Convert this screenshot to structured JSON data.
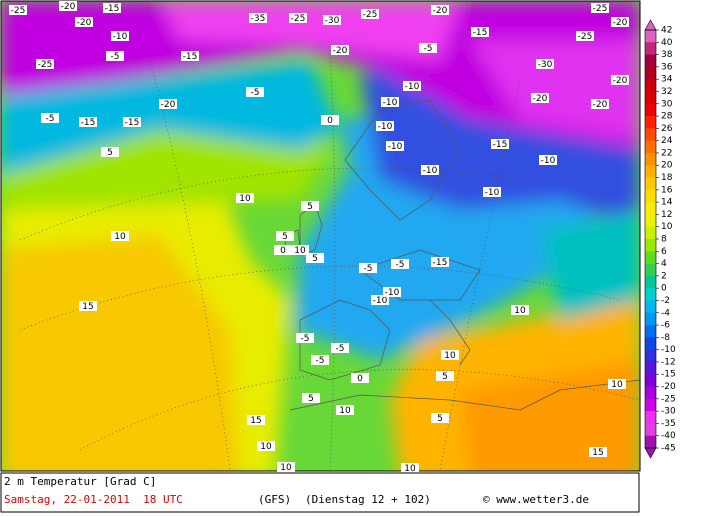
{
  "map": {
    "title": "2 m Temperatur [Grad C]",
    "date": "Samstag, 22-01-2011  18 UTC",
    "model": "(GFS)",
    "forecast": "(Dienstag 12 + 102)",
    "credit": "© www.wetter3.de",
    "colorbar": {
      "ticks": [
        42,
        40,
        38,
        36,
        34,
        32,
        30,
        28,
        26,
        24,
        22,
        20,
        18,
        16,
        14,
        12,
        10,
        8,
        6,
        4,
        2,
        0,
        -2,
        -4,
        -6,
        -8,
        -10,
        -12,
        -15,
        -20,
        -25,
        -30,
        -35,
        -40,
        -45
      ],
      "colors": [
        "#e060c0",
        "#c02878",
        "#a00040",
        "#b00020",
        "#c80010",
        "#dc0000",
        "#f00000",
        "#ff2000",
        "#ff4800",
        "#ff7000",
        "#ff9000",
        "#ffb000",
        "#ffc800",
        "#ffdc00",
        "#f8ec00",
        "#e8f400",
        "#c8f000",
        "#98e800",
        "#60dc20",
        "#30d050",
        "#00c890",
        "#00d0d0",
        "#00b8f0",
        "#0098f0",
        "#0070f0",
        "#1048e8",
        "#3030e0",
        "#5818d8",
        "#8000d8",
        "#a800e0",
        "#d000e8",
        "#f030f0",
        "#e040e0",
        "#a010b0"
      ]
    },
    "labels": [
      -25,
      -20,
      -15,
      -10,
      -35,
      -25,
      -30,
      -25,
      -20,
      -25,
      -20,
      -15,
      -5,
      -25,
      -20,
      -25,
      -30,
      -20,
      -15,
      -20,
      -5,
      -10,
      -20,
      -15,
      -15,
      -10,
      -5,
      0,
      -5,
      -10,
      5,
      -10,
      -10,
      -20,
      -20,
      -15,
      -10,
      -10,
      -15,
      -10,
      10,
      10,
      15,
      5,
      5,
      -5,
      -5,
      -5,
      10,
      5,
      0,
      -5,
      -10,
      -5,
      10,
      10,
      5,
      10,
      15,
      5,
      10,
      15,
      10,
      0,
      5,
      10,
      10
    ]
  }
}
